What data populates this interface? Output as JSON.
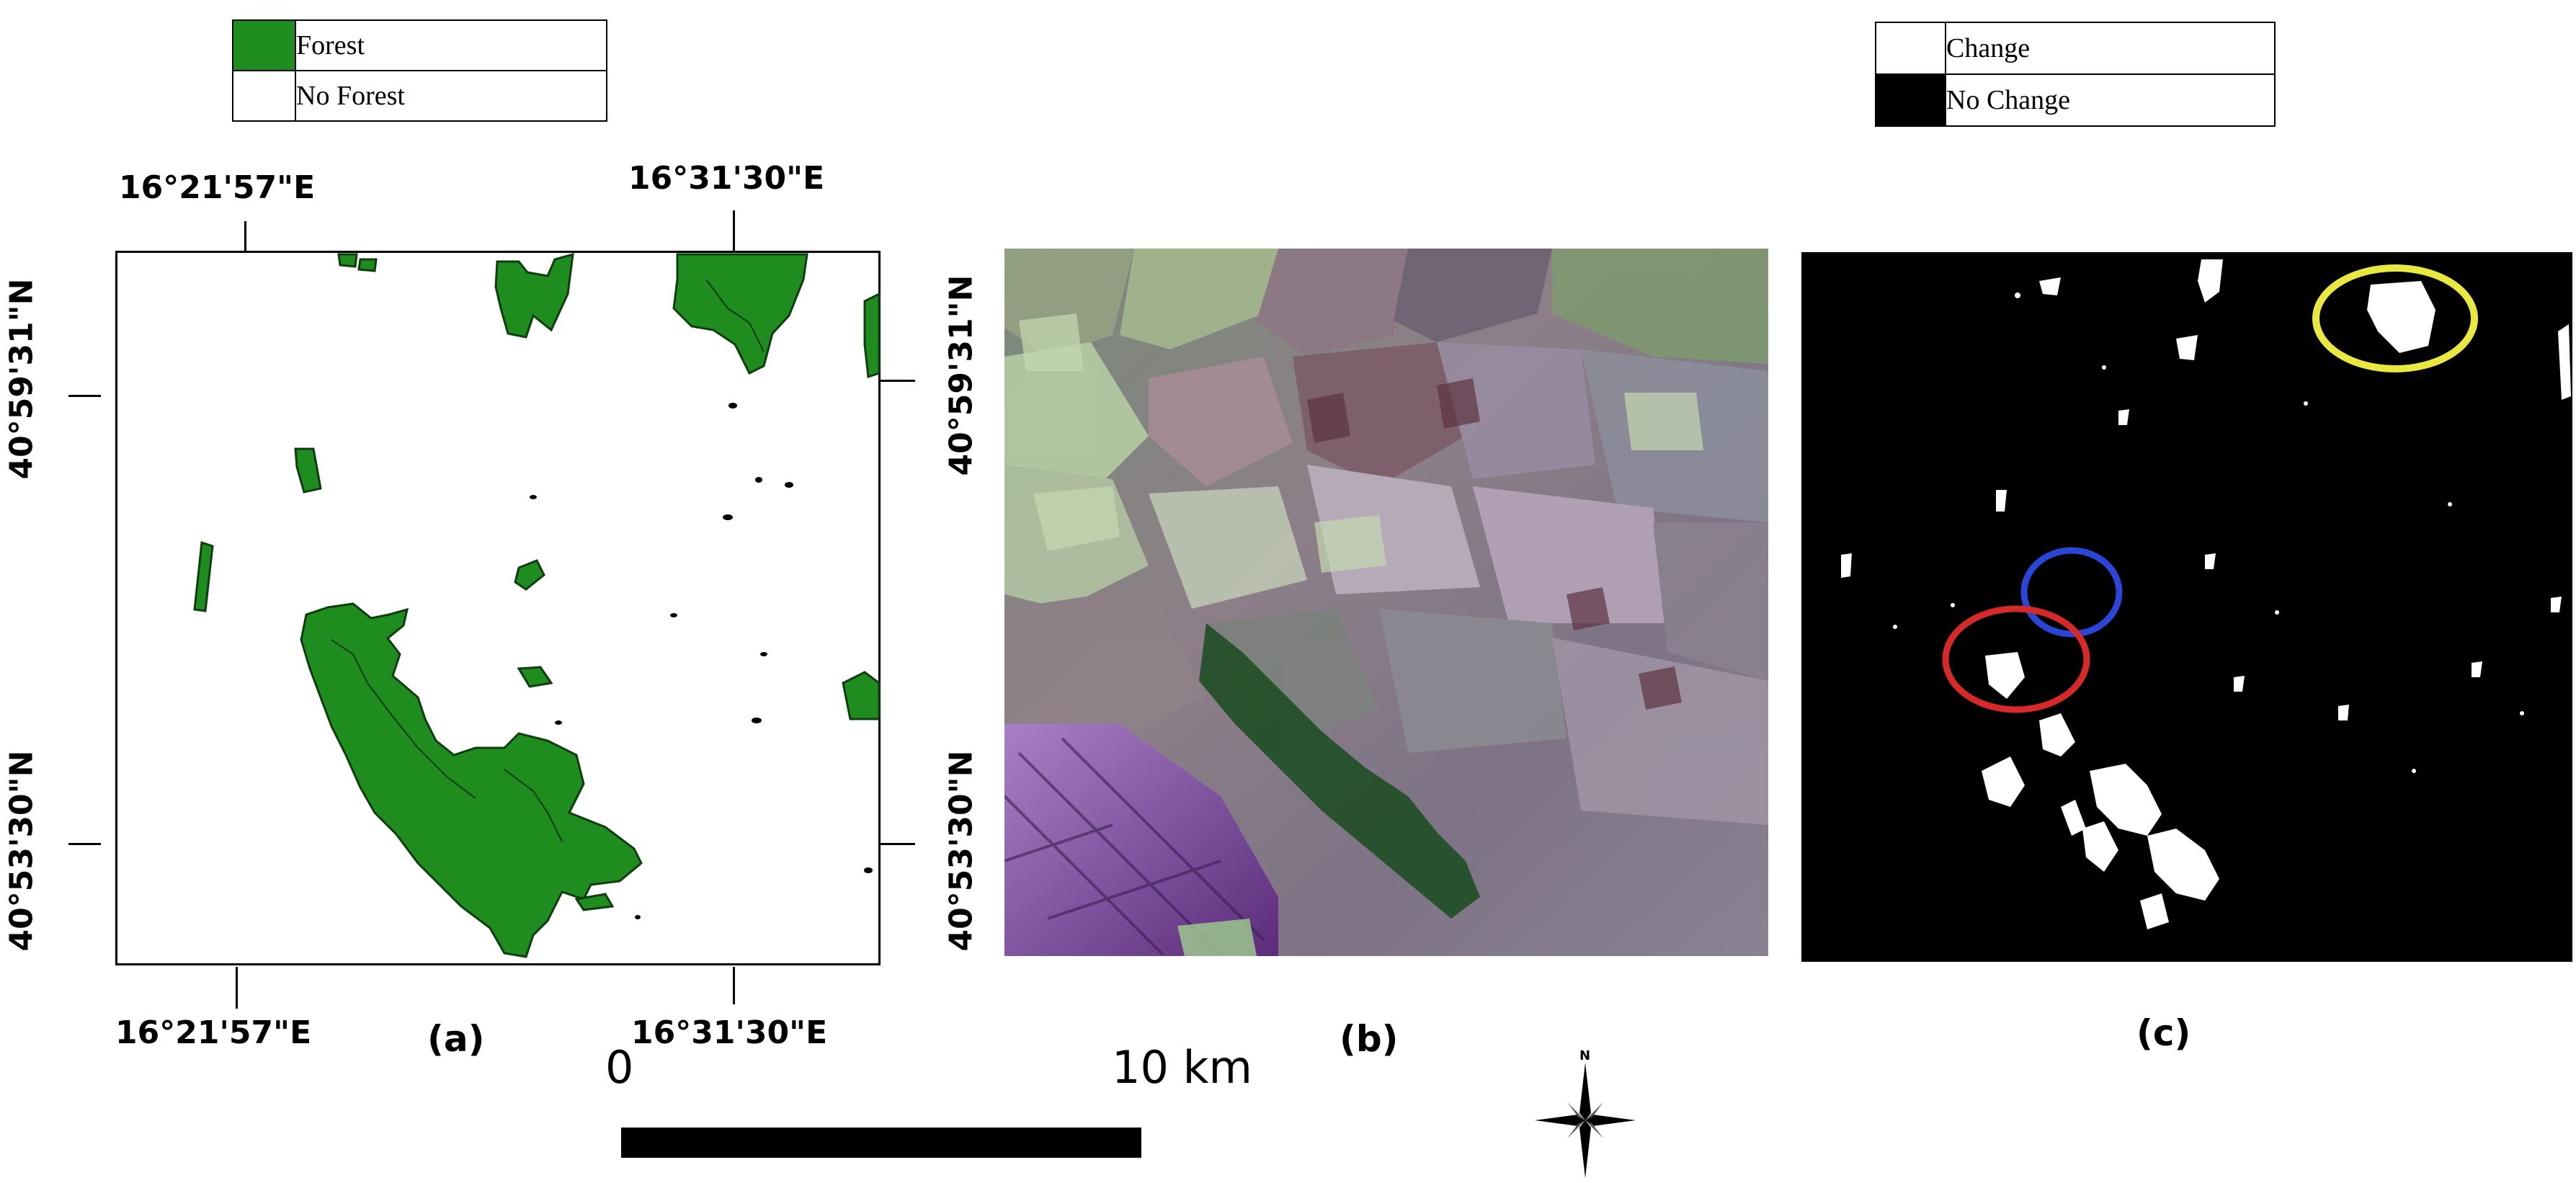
{
  "legend_forest": {
    "items": [
      {
        "label": "Forest",
        "color": "#1e8c1e"
      },
      {
        "label": "No Forest",
        "color": "#ffffff"
      }
    ]
  },
  "legend_change": {
    "items": [
      {
        "label": "Change",
        "color": "#ffffff"
      },
      {
        "label": "No Change",
        "color": "#000000"
      }
    ]
  },
  "coordinates": {
    "lon_left": "16°21'57\"E",
    "lon_right": "16°31'30\"E",
    "lat_top": "40°59'31\"N",
    "lat_bottom": "40°53'30\"N"
  },
  "panels": {
    "a": "(a)",
    "b": "(b)",
    "c": "(c)"
  },
  "scale_bar": {
    "start": "0",
    "end": "10 km"
  },
  "north_arrow": {
    "label": "N",
    "icon": "compass-star-icon"
  },
  "change_highlights": [
    {
      "color": "#e8e840",
      "name": "yellow"
    },
    {
      "color": "#2b46d6",
      "name": "blue"
    },
    {
      "color": "#d62a2a",
      "name": "red"
    }
  ]
}
